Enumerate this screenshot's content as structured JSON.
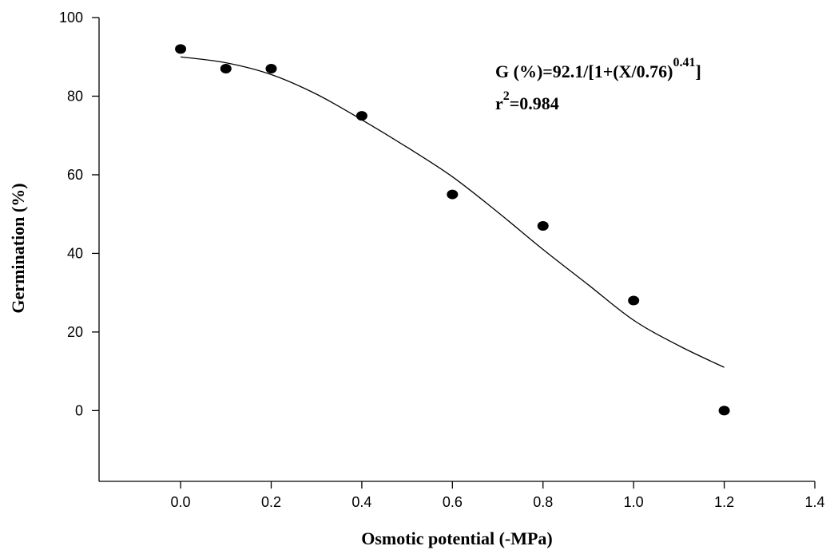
{
  "chart_data": {
    "type": "scatter",
    "xlabel": "Osmotic potential (-MPa)",
    "ylabel": "Germination (%)",
    "xlim": [
      -0.18,
      1.4
    ],
    "ylim": [
      -18,
      100
    ],
    "x_ticks": [
      "0.0",
      "0.2",
      "0.4",
      "0.6",
      "0.8",
      "1.0",
      "1.2",
      "1.4"
    ],
    "x_tick_values": [
      0.0,
      0.2,
      0.4,
      0.6,
      0.8,
      1.0,
      1.2,
      1.4
    ],
    "y_ticks": [
      "0",
      "20",
      "40",
      "60",
      "80",
      "100"
    ],
    "y_tick_values": [
      0,
      20,
      40,
      60,
      80,
      100
    ],
    "grid": false,
    "points": [
      {
        "x": 0.0,
        "y": 92
      },
      {
        "x": 0.1,
        "y": 87
      },
      {
        "x": 0.2,
        "y": 87
      },
      {
        "x": 0.4,
        "y": 75
      },
      {
        "x": 0.6,
        "y": 55
      },
      {
        "x": 0.8,
        "y": 47
      },
      {
        "x": 1.0,
        "y": 28
      },
      {
        "x": 1.2,
        "y": 0
      }
    ],
    "fit_curve": [
      {
        "x": 0.0,
        "y": 90.0
      },
      {
        "x": 0.1,
        "y": 88.5
      },
      {
        "x": 0.2,
        "y": 85.5
      },
      {
        "x": 0.3,
        "y": 80.5
      },
      {
        "x": 0.4,
        "y": 74.0
      },
      {
        "x": 0.5,
        "y": 67.0
      },
      {
        "x": 0.6,
        "y": 59.5
      },
      {
        "x": 0.7,
        "y": 50.5
      },
      {
        "x": 0.8,
        "y": 41.0
      },
      {
        "x": 0.9,
        "y": 32.0
      },
      {
        "x": 1.0,
        "y": 23.0
      },
      {
        "x": 1.1,
        "y": 16.5
      },
      {
        "x": 1.2,
        "y": 11.0
      }
    ],
    "annotation": {
      "equation_main": "G (%)=92.1/[1+(X/0.76)",
      "equation_exp": "0.41",
      "equation_close": "]",
      "r_prefix": "r",
      "r_exp": "2",
      "r_value": "=0.984"
    }
  }
}
